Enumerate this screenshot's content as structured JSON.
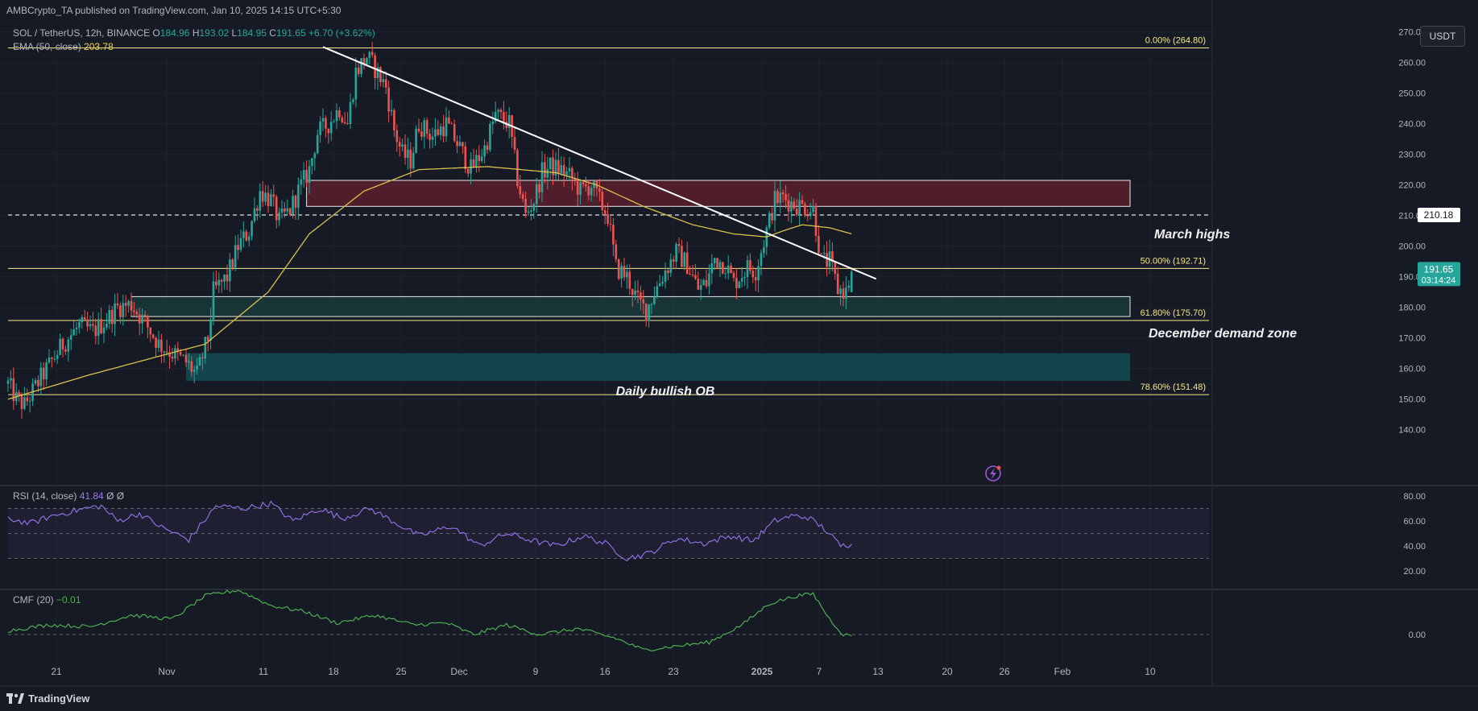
{
  "publisher": "AMBCrypto_TA published on TradingView.com, Jan 10, 2025 14:15 UTC+5:30",
  "symbol_line": {
    "symbol": "SOL / TetherUS, 12h, BINANCE",
    "o_label": "O",
    "o": "184.96",
    "h_label": "H",
    "h": "193.02",
    "l_label": "L",
    "l": "184.95",
    "c_label": "C",
    "c": "191.65",
    "change": "+6.70 (+3.62%)"
  },
  "ema_line": {
    "label": "EMA (50, close)",
    "value": "203.78"
  },
  "rsi_line": {
    "label": "RSI (14, close)",
    "value": "41.84",
    "extra": "Ø Ø"
  },
  "cmf_line": {
    "label": "CMF (20)",
    "value": "−0.01"
  },
  "currency_button": "USDT",
  "footer_logo": "TradingView",
  "colors": {
    "up": "#26a69a",
    "down": "#ef5350",
    "ema": "#d9c24a",
    "fib": "#f5e88a",
    "rsi": "#8e6ee0",
    "cmf": "#4caf50"
  },
  "chart_data": {
    "type": "candlestick",
    "timeframe": "12h",
    "y_ticks": [
      "270.00",
      "260.00",
      "250.00",
      "240.00",
      "230.00",
      "220.00",
      "210.00",
      "200.00",
      "190.00",
      "180.00",
      "170.00",
      "160.00",
      "150.00",
      "140.00"
    ],
    "x_ticks": [
      "21",
      "Nov",
      "11",
      "18",
      "25",
      "Dec",
      "9",
      "16",
      "23",
      "2025",
      "7",
      "13",
      "20",
      "26",
      "Feb",
      "10"
    ],
    "last_price": "191.65",
    "countdown": "03:14:24",
    "march_highs_price": "210.18",
    "fib_levels": [
      {
        "label": "0.00% (264.80)",
        "price": 264.8
      },
      {
        "label": "50.00% (192.71)",
        "price": 192.71
      },
      {
        "label": "61.80% (175.70)",
        "price": 175.7
      },
      {
        "label": "78.60% (151.48)",
        "price": 151.48
      }
    ],
    "zones": [
      {
        "name": "supply",
        "top": 221.5,
        "bottom": 213,
        "start_idx": 109,
        "end_idx": 330
      },
      {
        "name": "december-demand",
        "top": 183.5,
        "bottom": 177,
        "start_idx": 45,
        "end_idx": 330
      },
      {
        "name": "daily-bullish-ob",
        "top": 165,
        "bottom": 156,
        "start_idx": 65,
        "end_idx": 330
      }
    ],
    "annotations": {
      "march": "March highs",
      "demand": "December demand zone",
      "ob": "Daily bullish OB"
    },
    "trendline": {
      "start_idx": 115,
      "start_price": 265.1,
      "end_idx": 317,
      "end_price": 189.3
    },
    "anchors": [
      [
        0,
        155
      ],
      [
        3,
        150
      ],
      [
        6,
        148
      ],
      [
        12,
        157
      ],
      [
        20,
        168
      ],
      [
        26,
        174
      ],
      [
        31,
        172
      ],
      [
        36,
        176
      ],
      [
        40,
        180
      ],
      [
        45,
        181
      ],
      [
        50,
        175
      ],
      [
        55,
        168
      ],
      [
        60,
        165
      ],
      [
        65,
        162
      ],
      [
        69,
        158
      ],
      [
        73,
        170
      ],
      [
        75,
        185
      ],
      [
        80,
        190
      ],
      [
        84,
        200
      ],
      [
        88,
        205
      ],
      [
        92,
        218
      ],
      [
        96,
        215
      ],
      [
        99,
        208
      ],
      [
        103,
        212
      ],
      [
        106,
        218
      ],
      [
        110,
        225
      ],
      [
        113,
        237
      ],
      [
        117,
        240
      ],
      [
        121,
        245
      ],
      [
        124,
        240
      ],
      [
        127,
        257
      ],
      [
        131,
        262
      ],
      [
        134,
        258
      ],
      [
        138,
        252
      ],
      [
        141,
        238
      ],
      [
        144,
        230
      ],
      [
        147,
        228
      ],
      [
        150,
        240
      ],
      [
        155,
        236
      ],
      [
        160,
        240
      ],
      [
        165,
        232
      ],
      [
        169,
        225
      ],
      [
        174,
        232
      ],
      [
        178,
        243
      ],
      [
        183,
        240
      ],
      [
        186,
        222
      ],
      [
        189,
        210
      ],
      [
        192,
        215
      ],
      [
        195,
        224
      ],
      [
        198,
        226
      ],
      [
        202,
        225
      ],
      [
        206,
        222
      ],
      [
        209,
        218
      ],
      [
        213,
        220
      ],
      [
        217,
        213
      ],
      [
        219,
        210
      ],
      [
        222,
        193
      ],
      [
        226,
        190
      ],
      [
        230,
        182
      ],
      [
        233,
        179
      ],
      [
        236,
        185
      ],
      [
        240,
        192
      ],
      [
        244,
        198
      ],
      [
        248,
        194
      ],
      [
        252,
        186
      ],
      [
        255,
        188
      ],
      [
        258,
        196
      ],
      [
        262,
        194
      ],
      [
        265,
        188
      ],
      [
        270,
        193
      ],
      [
        273,
        192
      ],
      [
        277,
        205
      ],
      [
        280,
        215
      ],
      [
        283,
        216
      ],
      [
        286,
        214
      ],
      [
        290,
        213
      ],
      [
        294,
        212
      ],
      [
        297,
        195
      ],
      [
        300,
        195
      ],
      [
        303,
        186
      ],
      [
        306,
        185
      ],
      [
        308,
        191.65
      ]
    ],
    "ema_anchors": [
      [
        0,
        150
      ],
      [
        30,
        158
      ],
      [
        55,
        164
      ],
      [
        72,
        168
      ],
      [
        95,
        185
      ],
      [
        110,
        204
      ],
      [
        130,
        218
      ],
      [
        150,
        225
      ],
      [
        175,
        226
      ],
      [
        200,
        224
      ],
      [
        215,
        220
      ],
      [
        232,
        213
      ],
      [
        250,
        207
      ],
      [
        265,
        204
      ],
      [
        277,
        203
      ],
      [
        283,
        205
      ],
      [
        290,
        207
      ],
      [
        300,
        206
      ],
      [
        309,
        203.78
      ]
    ],
    "rsi": {
      "ticks": [
        "80.00",
        "60.00",
        "40.00",
        "20.00"
      ],
      "upper": 70,
      "mid": 50,
      "lower": 30,
      "min": 20,
      "max": 80,
      "anchors": [
        [
          0,
          62
        ],
        [
          8,
          58
        ],
        [
          16,
          64
        ],
        [
          28,
          70
        ],
        [
          34,
          72
        ],
        [
          40,
          60
        ],
        [
          48,
          66
        ],
        [
          56,
          55
        ],
        [
          66,
          45
        ],
        [
          76,
          72
        ],
        [
          86,
          70
        ],
        [
          96,
          74
        ],
        [
          104,
          60
        ],
        [
          114,
          70
        ],
        [
          122,
          62
        ],
        [
          132,
          70
        ],
        [
          142,
          58
        ],
        [
          150,
          48
        ],
        [
          162,
          56
        ],
        [
          172,
          40
        ],
        [
          182,
          50
        ],
        [
          192,
          44
        ],
        [
          200,
          40
        ],
        [
          210,
          48
        ],
        [
          218,
          42
        ],
        [
          226,
          30
        ],
        [
          234,
          34
        ],
        [
          244,
          46
        ],
        [
          254,
          42
        ],
        [
          264,
          48
        ],
        [
          272,
          44
        ],
        [
          280,
          60
        ],
        [
          286,
          64
        ],
        [
          292,
          63
        ],
        [
          298,
          54
        ],
        [
          304,
          40
        ],
        [
          309,
          41.84
        ]
      ]
    },
    "cmf": {
      "ticks": [
        "0.00"
      ],
      "min": -0.15,
      "max": 0.3,
      "anchors": [
        [
          0,
          0.02
        ],
        [
          15,
          0.05
        ],
        [
          30,
          0.04
        ],
        [
          45,
          0.1
        ],
        [
          60,
          0.08
        ],
        [
          72,
          0.2
        ],
        [
          84,
          0.23
        ],
        [
          96,
          0.15
        ],
        [
          108,
          0.12
        ],
        [
          120,
          0.06
        ],
        [
          134,
          0.1
        ],
        [
          148,
          0.05
        ],
        [
          160,
          0.06
        ],
        [
          170,
          0.0
        ],
        [
          182,
          0.05
        ],
        [
          194,
          0.0
        ],
        [
          208,
          0.03
        ],
        [
          222,
          -0.02
        ],
        [
          232,
          -0.08
        ],
        [
          244,
          -0.06
        ],
        [
          256,
          -0.04
        ],
        [
          268,
          0.05
        ],
        [
          278,
          0.16
        ],
        [
          288,
          0.2
        ],
        [
          294,
          0.21
        ],
        [
          300,
          0.08
        ],
        [
          305,
          0.0
        ],
        [
          309,
          -0.01
        ]
      ]
    }
  }
}
